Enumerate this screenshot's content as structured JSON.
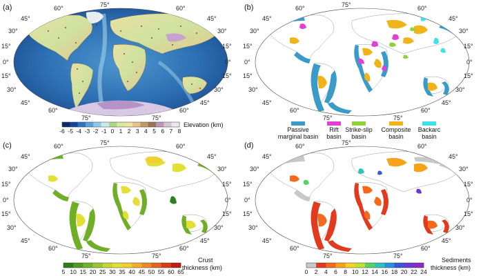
{
  "panels": [
    {
      "id": "a",
      "label": "(a)"
    },
    {
      "id": "b",
      "label": "(b)"
    },
    {
      "id": "c",
      "label": "(c)"
    },
    {
      "id": "d",
      "label": "(d)"
    }
  ],
  "grid_labels": [
    "60°",
    "75°",
    "45°",
    "30°",
    "15°",
    "0°",
    "15°",
    "30°",
    "45°",
    "60°",
    "75°"
  ],
  "colorbars": {
    "elevation": {
      "ticks": [
        "-6",
        "-5",
        "-4",
        "-3",
        "-2",
        "-1",
        "0",
        "1",
        "2",
        "3",
        "4",
        "5",
        "6",
        "7",
        "8"
      ],
      "title": "Elevation (km)",
      "colors": [
        "#0b2a6b",
        "#1446a0",
        "#2f72c2",
        "#5aa2d8",
        "#8fcbe6",
        "#c9e9ee",
        "#a9d88a",
        "#d8e79a",
        "#efe3a1",
        "#e2c489",
        "#c49a66",
        "#9a7356",
        "#b89ab8",
        "#d6c4dc",
        "#efe6f0"
      ]
    },
    "crust": {
      "ticks": [
        "5",
        "10",
        "15",
        "20",
        "25",
        "30",
        "35",
        "40",
        "45",
        "50",
        "55",
        "60",
        "65"
      ],
      "title_line1": "Crust",
      "title_line2": "thickness (km)",
      "colors": [
        "#2e7d1e",
        "#4f9a23",
        "#73b128",
        "#9cc62e",
        "#c3d632",
        "#e3df36",
        "#f2cf30",
        "#f3ad2b",
        "#ee8726",
        "#e5611f",
        "#d63c1a",
        "#c01c16"
      ]
    },
    "sediments": {
      "ticks": [
        "0",
        "2",
        "4",
        "6",
        "8",
        "10",
        "12",
        "14",
        "16",
        "18",
        "20",
        "22",
        "24"
      ],
      "title_line1": "Sediments",
      "title_line2": "thickness (km)",
      "colors": [
        "#c8c8c8",
        "#e23a1e",
        "#f36a1c",
        "#f8a21c",
        "#f7d21e",
        "#bfe034",
        "#56d166",
        "#2ec3b8",
        "#2a8fe0",
        "#3b55d8",
        "#6a3ad0",
        "#8e2cc0"
      ]
    }
  },
  "legend": [
    {
      "line1": "Passive",
      "line2": "marginal basin",
      "color": "#3a9bc8"
    },
    {
      "line1": "Rift",
      "line2": "basin",
      "color": "#e23fd5"
    },
    {
      "line1": "Strike-slip",
      "line2": "basin",
      "color": "#8fd23a"
    },
    {
      "line1": "Composite",
      "line2": "basin",
      "color": "#f0b418"
    },
    {
      "line1": "Backarc",
      "line2": "basin",
      "color": "#3fe0e8"
    }
  ]
}
